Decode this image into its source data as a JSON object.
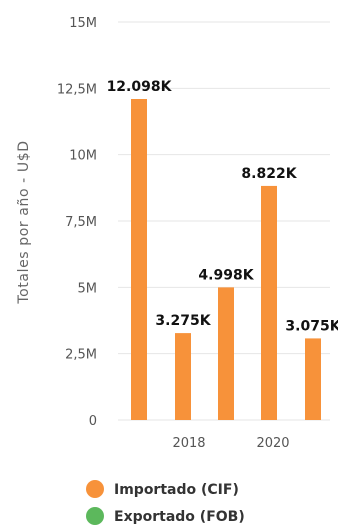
{
  "chart_data": {
    "type": "bar",
    "title": "",
    "ylabel": "Totales por año - U$D",
    "xlabel": "",
    "ylim": [
      0,
      15000000
    ],
    "y_ticks": [
      {
        "value": 0,
        "label": "0"
      },
      {
        "value": 2500000,
        "label": "2,5M"
      },
      {
        "value": 5000000,
        "label": "5M"
      },
      {
        "value": 7500000,
        "label": "7,5M"
      },
      {
        "value": 10000000,
        "label": "10M"
      },
      {
        "value": 12500000,
        "label": "12,5M"
      },
      {
        "value": 15000000,
        "label": "15M"
      }
    ],
    "x_tick_labels": [
      "2018",
      "2020"
    ],
    "grid": true,
    "legend_position": "bottom",
    "series": [
      {
        "name": "Importado (CIF)",
        "color": "#f7923a"
      },
      {
        "name": "Exportado (FOB)",
        "color": "#5cb85c"
      }
    ],
    "bars": [
      {
        "series": "Importado (CIF)",
        "value": 12098000,
        "label": "12.098K"
      },
      {
        "series": "Importado (CIF)",
        "value": 3275000,
        "label": "3.275K"
      },
      {
        "series": "Importado (CIF)",
        "value": 4998000,
        "label": "4.998K"
      },
      {
        "series": "Importado (CIF)",
        "value": 8822000,
        "label": "8.822K"
      },
      {
        "series": "Importado (CIF)",
        "value": 3075000,
        "label": "3.075K"
      }
    ]
  }
}
